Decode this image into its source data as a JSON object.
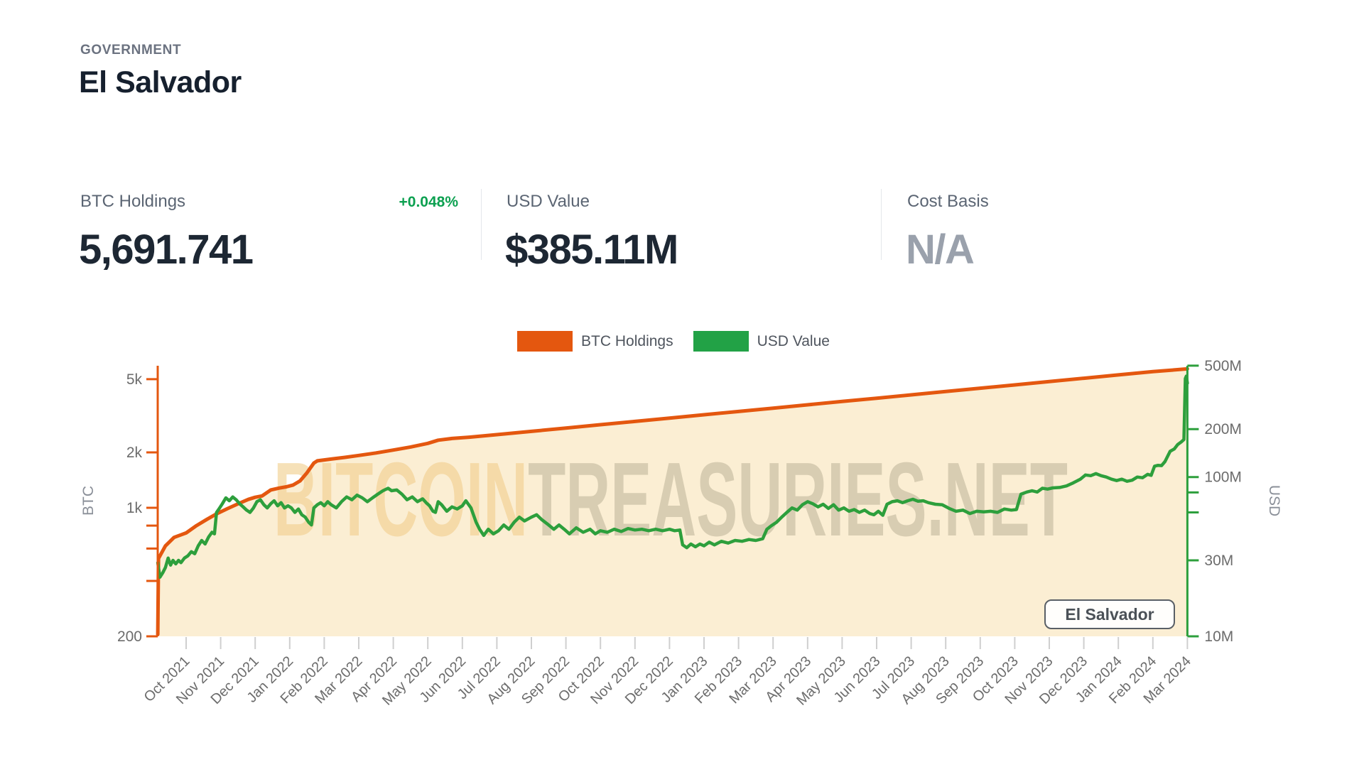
{
  "header": {
    "category": "GOVERNMENT",
    "title": "El Salvador"
  },
  "stats": [
    {
      "label": "BTC Holdings",
      "change": "+0.048%",
      "value": "5,691.741"
    },
    {
      "label": "USD Value",
      "value": "$385.11M"
    },
    {
      "label": "Cost Basis",
      "value": "N/A"
    }
  ],
  "legend": {
    "items": [
      {
        "label": "BTC Holdings",
        "color": "#e4570f"
      },
      {
        "label": "USD Value",
        "color": "#22a246"
      }
    ]
  },
  "colors": {
    "btc_line": "#e4570f",
    "btc_fill": "#fbeed3",
    "usd_line": "#2d9f3c",
    "axis_text": "#6c6c6c",
    "tick_minor": "#cfcfcf",
    "positive_green": "#0ca050"
  },
  "chart_data": {
    "type": "area",
    "title": "El Salvador BTC Holdings vs USD Value over time",
    "x_unit": "months, 0 = Oct 2021 tick, range -0.82 to 29",
    "x_ticks": [
      "Oct 2021",
      "Nov 2021",
      "Dec 2021",
      "Jan 2022",
      "Feb 2022",
      "Mar 2022",
      "Apr 2022",
      "May 2022",
      "Jun 2022",
      "Jul 2022",
      "Aug 2022",
      "Sep 2022",
      "Oct 2022",
      "Nov 2022",
      "Dec 2022",
      "Jan 2023",
      "Feb 2023",
      "Mar 2023",
      "Apr 2023",
      "May 2023",
      "Jun 2023",
      "Jul 2023",
      "Aug 2023",
      "Sep 2023",
      "Oct 2023",
      "Nov 2023",
      "Dec 2023",
      "Jan 2024",
      "Feb 2024",
      "Mar 2024"
    ],
    "left_axis": {
      "label": "BTC",
      "scale": "log",
      "range": [
        200,
        5940
      ],
      "ticks": [
        {
          "v": 5000,
          "t": "5k"
        },
        {
          "v": 2000,
          "t": "2k"
        },
        {
          "v": 1000,
          "t": "1k"
        },
        {
          "v": 800,
          "t": ""
        },
        {
          "v": 600,
          "t": ""
        },
        {
          "v": 400,
          "t": ""
        },
        {
          "v": 200,
          "t": "200"
        }
      ]
    },
    "right_axis": {
      "label": "USD",
      "scale": "log",
      "unit": "$M",
      "range": [
        10,
        500
      ],
      "ticks": [
        {
          "v": 500,
          "t": "500M"
        },
        {
          "v": 200,
          "t": "200M"
        },
        {
          "v": 100,
          "t": "100M"
        },
        {
          "v": 80,
          "t": ""
        },
        {
          "v": 60,
          "t": ""
        },
        {
          "v": 30,
          "t": "30M"
        },
        {
          "v": 10,
          "t": "10M"
        }
      ]
    },
    "series": [
      {
        "name": "BTC Holdings",
        "axis": "left",
        "type": "area-line",
        "unit": "BTC",
        "points": [
          [
            -0.82,
            205
          ],
          [
            -0.8,
            530
          ],
          [
            -0.6,
            620
          ],
          [
            -0.35,
            690
          ],
          [
            0,
            730
          ],
          [
            0.3,
            800
          ],
          [
            0.6,
            865
          ],
          [
            0.9,
            930
          ],
          [
            1.2,
            990
          ],
          [
            1.5,
            1050
          ],
          [
            1.8,
            1110
          ],
          [
            2.0,
            1140
          ],
          [
            2.2,
            1160
          ],
          [
            2.45,
            1250
          ],
          [
            2.7,
            1280
          ],
          [
            2.9,
            1300
          ],
          [
            3.1,
            1330
          ],
          [
            3.3,
            1400
          ],
          [
            3.5,
            1550
          ],
          [
            3.7,
            1750
          ],
          [
            3.8,
            1800
          ],
          [
            4.2,
            1840
          ],
          [
            4.6,
            1880
          ],
          [
            5.0,
            1925
          ],
          [
            5.5,
            1985
          ],
          [
            6.0,
            2060
          ],
          [
            6.5,
            2140
          ],
          [
            7.0,
            2240
          ],
          [
            7.3,
            2330
          ],
          [
            7.7,
            2380
          ],
          [
            8.2,
            2420
          ],
          [
            9,
            2497
          ],
          [
            10,
            2603
          ],
          [
            11,
            2713
          ],
          [
            12,
            2828
          ],
          [
            13,
            2948
          ],
          [
            14,
            3073
          ],
          [
            15,
            3203
          ],
          [
            16,
            3339
          ],
          [
            17,
            3480
          ],
          [
            18,
            3628
          ],
          [
            19,
            3782
          ],
          [
            20,
            3942
          ],
          [
            21,
            4110
          ],
          [
            22,
            4284
          ],
          [
            23,
            4466
          ],
          [
            24,
            4656
          ],
          [
            25,
            4853
          ],
          [
            26,
            5059
          ],
          [
            27,
            5274
          ],
          [
            28,
            5497
          ],
          [
            29,
            5691.741
          ]
        ]
      },
      {
        "name": "USD Value",
        "axis": "right",
        "type": "line",
        "unit": "$M",
        "points": [
          [
            -0.82,
            29
          ],
          [
            -0.76,
            23.5
          ],
          [
            -0.68,
            25
          ],
          [
            -0.6,
            27
          ],
          [
            -0.52,
            31
          ],
          [
            -0.45,
            28
          ],
          [
            -0.38,
            30
          ],
          [
            -0.3,
            28.5
          ],
          [
            -0.22,
            30
          ],
          [
            -0.15,
            29
          ],
          [
            -0.05,
            31
          ],
          [
            0.05,
            32
          ],
          [
            0.15,
            34
          ],
          [
            0.25,
            33
          ],
          [
            0.35,
            37
          ],
          [
            0.45,
            40
          ],
          [
            0.55,
            38
          ],
          [
            0.65,
            42
          ],
          [
            0.75,
            45
          ],
          [
            0.82,
            44
          ],
          [
            0.88,
            60
          ],
          [
            0.95,
            63
          ],
          [
            1.05,
            68
          ],
          [
            1.15,
            74
          ],
          [
            1.25,
            71
          ],
          [
            1.35,
            75
          ],
          [
            1.45,
            72
          ],
          [
            1.55,
            68
          ],
          [
            1.65,
            65
          ],
          [
            1.75,
            62
          ],
          [
            1.85,
            60
          ],
          [
            1.95,
            64
          ],
          [
            2.05,
            70
          ],
          [
            2.15,
            72
          ],
          [
            2.25,
            67
          ],
          [
            2.35,
            64
          ],
          [
            2.45,
            68
          ],
          [
            2.55,
            71
          ],
          [
            2.65,
            66
          ],
          [
            2.75,
            69
          ],
          [
            2.85,
            64
          ],
          [
            2.95,
            66
          ],
          [
            3.05,
            64
          ],
          [
            3.15,
            60
          ],
          [
            3.25,
            63
          ],
          [
            3.35,
            58
          ],
          [
            3.45,
            56
          ],
          [
            3.55,
            52
          ],
          [
            3.63,
            50
          ],
          [
            3.7,
            64
          ],
          [
            3.8,
            67
          ],
          [
            3.9,
            69
          ],
          [
            4.0,
            66
          ],
          [
            4.1,
            70
          ],
          [
            4.2,
            67
          ],
          [
            4.35,
            64
          ],
          [
            4.5,
            70
          ],
          [
            4.65,
            75
          ],
          [
            4.8,
            72
          ],
          [
            4.95,
            77
          ],
          [
            5.1,
            74
          ],
          [
            5.25,
            70
          ],
          [
            5.4,
            74
          ],
          [
            5.55,
            78
          ],
          [
            5.7,
            82
          ],
          [
            5.85,
            85
          ],
          [
            5.95,
            82
          ],
          [
            6.1,
            83
          ],
          [
            6.25,
            78
          ],
          [
            6.4,
            72
          ],
          [
            6.55,
            75
          ],
          [
            6.7,
            70
          ],
          [
            6.85,
            73
          ],
          [
            6.95,
            69
          ],
          [
            7.05,
            66
          ],
          [
            7.15,
            61
          ],
          [
            7.22,
            60
          ],
          [
            7.3,
            70
          ],
          [
            7.4,
            67
          ],
          [
            7.55,
            61
          ],
          [
            7.7,
            65
          ],
          [
            7.85,
            63
          ],
          [
            8.0,
            66
          ],
          [
            8.1,
            71
          ],
          [
            8.25,
            64
          ],
          [
            8.4,
            52
          ],
          [
            8.5,
            47
          ],
          [
            8.62,
            43
          ],
          [
            8.75,
            47
          ],
          [
            8.9,
            44
          ],
          [
            9.05,
            46
          ],
          [
            9.2,
            50
          ],
          [
            9.35,
            47
          ],
          [
            9.5,
            52
          ],
          [
            9.65,
            56
          ],
          [
            9.8,
            53
          ],
          [
            10.0,
            56
          ],
          [
            10.15,
            58
          ],
          [
            10.3,
            54
          ],
          [
            10.5,
            50
          ],
          [
            10.65,
            47
          ],
          [
            10.8,
            50
          ],
          [
            10.95,
            47
          ],
          [
            11.1,
            44
          ],
          [
            11.3,
            48
          ],
          [
            11.5,
            45
          ],
          [
            11.7,
            47
          ],
          [
            11.85,
            44
          ],
          [
            12.0,
            46
          ],
          [
            12.2,
            45
          ],
          [
            12.4,
            47
          ],
          [
            12.6,
            45.5
          ],
          [
            12.8,
            47.5
          ],
          [
            13.0,
            46.5
          ],
          [
            13.2,
            47
          ],
          [
            13.4,
            46
          ],
          [
            13.6,
            47
          ],
          [
            13.8,
            46
          ],
          [
            14.0,
            47
          ],
          [
            14.15,
            46
          ],
          [
            14.3,
            46.5
          ],
          [
            14.38,
            37.5
          ],
          [
            14.5,
            36
          ],
          [
            14.62,
            38
          ],
          [
            14.75,
            36.5
          ],
          [
            14.88,
            38
          ],
          [
            15.0,
            37
          ],
          [
            15.15,
            39
          ],
          [
            15.3,
            37.5
          ],
          [
            15.5,
            39.5
          ],
          [
            15.7,
            38.5
          ],
          [
            15.9,
            40
          ],
          [
            16.1,
            39.5
          ],
          [
            16.3,
            40.5
          ],
          [
            16.5,
            40
          ],
          [
            16.7,
            41
          ],
          [
            16.82,
            47
          ],
          [
            16.95,
            49.5
          ],
          [
            17.1,
            52
          ],
          [
            17.25,
            56
          ],
          [
            17.4,
            60
          ],
          [
            17.55,
            64
          ],
          [
            17.7,
            62
          ],
          [
            17.85,
            67
          ],
          [
            18.0,
            70
          ],
          [
            18.15,
            68
          ],
          [
            18.3,
            65
          ],
          [
            18.45,
            67.5
          ],
          [
            18.6,
            63.5
          ],
          [
            18.75,
            67
          ],
          [
            18.9,
            62
          ],
          [
            19.05,
            64
          ],
          [
            19.2,
            61
          ],
          [
            19.35,
            62.5
          ],
          [
            19.5,
            60
          ],
          [
            19.65,
            62
          ],
          [
            19.8,
            59
          ],
          [
            19.92,
            58
          ],
          [
            20.05,
            61
          ],
          [
            20.18,
            57.5
          ],
          [
            20.3,
            67.5
          ],
          [
            20.45,
            70
          ],
          [
            20.6,
            71
          ],
          [
            20.75,
            69
          ],
          [
            20.9,
            71
          ],
          [
            21.05,
            72.5
          ],
          [
            21.2,
            70.5
          ],
          [
            21.35,
            71
          ],
          [
            21.5,
            69
          ],
          [
            21.7,
            67.5
          ],
          [
            21.9,
            67
          ],
          [
            22.1,
            63.5
          ],
          [
            22.3,
            61
          ],
          [
            22.5,
            62
          ],
          [
            22.7,
            59
          ],
          [
            22.9,
            61
          ],
          [
            23.1,
            60.5
          ],
          [
            23.3,
            61
          ],
          [
            23.5,
            60
          ],
          [
            23.7,
            63
          ],
          [
            23.9,
            62
          ],
          [
            24.05,
            62.5
          ],
          [
            24.18,
            78
          ],
          [
            24.35,
            80.5
          ],
          [
            24.5,
            82
          ],
          [
            24.65,
            80.5
          ],
          [
            24.8,
            85
          ],
          [
            24.95,
            84
          ],
          [
            25.1,
            85.5
          ],
          [
            25.3,
            86
          ],
          [
            25.5,
            88
          ],
          [
            25.7,
            92
          ],
          [
            25.9,
            97
          ],
          [
            26.05,
            103
          ],
          [
            26.2,
            102
          ],
          [
            26.35,
            105
          ],
          [
            26.5,
            102
          ],
          [
            26.65,
            100
          ],
          [
            26.8,
            97
          ],
          [
            26.95,
            95
          ],
          [
            27.1,
            97
          ],
          [
            27.25,
            94
          ],
          [
            27.4,
            95.5
          ],
          [
            27.55,
            100
          ],
          [
            27.7,
            99
          ],
          [
            27.85,
            104
          ],
          [
            27.95,
            102.5
          ],
          [
            28.05,
            117
          ],
          [
            28.15,
            118.5
          ],
          [
            28.25,
            118
          ],
          [
            28.35,
            125
          ],
          [
            28.5,
            145
          ],
          [
            28.62,
            150
          ],
          [
            28.72,
            160
          ],
          [
            28.82,
            166
          ],
          [
            28.9,
            172
          ],
          [
            28.94,
            415
          ],
          [
            28.97,
            430
          ],
          [
            29.0,
            388
          ]
        ]
      }
    ],
    "legend_position": "top-center",
    "grid": false,
    "watermark": {
      "primary": "BITCOIN",
      "secondary": "TREASURIES.NET"
    },
    "annotation": "El Salvador"
  }
}
